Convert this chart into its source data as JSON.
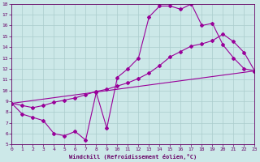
{
  "xlabel": "Windchill (Refroidissement éolien,°C)",
  "xlim": [
    0,
    23
  ],
  "ylim": [
    5,
    18
  ],
  "xticks": [
    0,
    1,
    2,
    3,
    4,
    5,
    6,
    7,
    8,
    9,
    10,
    11,
    12,
    13,
    14,
    15,
    16,
    17,
    18,
    19,
    20,
    21,
    22,
    23
  ],
  "yticks": [
    5,
    6,
    7,
    8,
    9,
    10,
    11,
    12,
    13,
    14,
    15,
    16,
    17,
    18
  ],
  "bg_color": "#cce8e8",
  "line_color": "#990099",
  "grid_color": "#aacccc",
  "series": [
    {
      "x": [
        0,
        1,
        2,
        3,
        4,
        5,
        6,
        7,
        8,
        9,
        10,
        11,
        12,
        13,
        14,
        15,
        16,
        17,
        18,
        19,
        20,
        21,
        22,
        23
      ],
      "y": [
        8.8,
        7.8,
        7.5,
        7.2,
        6.0,
        5.8,
        6.2,
        5.4,
        9.8,
        6.5,
        11.2,
        12.0,
        13.0,
        16.8,
        17.8,
        17.8,
        17.5,
        18.0,
        16.0,
        16.2,
        14.2,
        13.0,
        12.0,
        11.8
      ]
    },
    {
      "x": [
        0,
        23
      ],
      "y": [
        8.8,
        11.8
      ]
    },
    {
      "x": [
        0,
        1,
        2,
        3,
        4,
        5,
        6,
        7,
        8,
        9,
        10,
        11,
        12,
        13,
        14,
        15,
        16,
        17,
        18,
        19,
        20,
        21,
        22,
        23
      ],
      "y": [
        8.8,
        8.6,
        8.4,
        8.6,
        8.9,
        9.1,
        9.3,
        9.6,
        9.9,
        10.1,
        10.4,
        10.7,
        11.1,
        11.6,
        12.3,
        13.1,
        13.6,
        14.1,
        14.3,
        14.6,
        15.2,
        14.5,
        13.5,
        11.8
      ]
    }
  ]
}
